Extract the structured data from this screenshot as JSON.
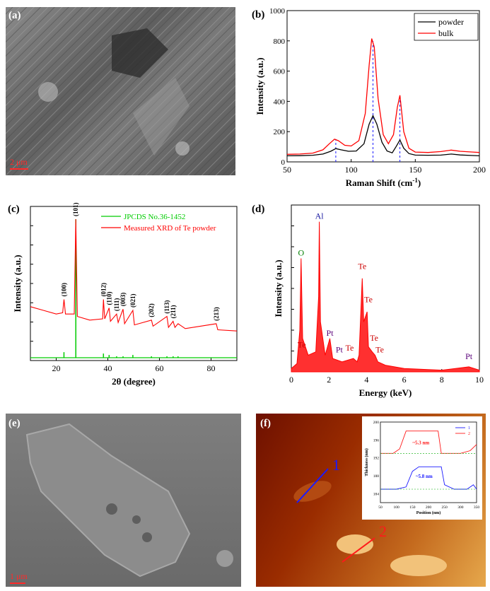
{
  "panels": {
    "a": {
      "label": "(a)",
      "scale_bar": "2 μm",
      "colors": {
        "bg": "#6d6d6d",
        "scale": "#ff2a2a",
        "label": "#ffffff"
      }
    },
    "e": {
      "label": "(e)",
      "scale_bar": "1 μm",
      "colors": {
        "bg": "#777777",
        "scale": "#ff2a2a",
        "label": "#ffffff"
      }
    },
    "f": {
      "label": "(f)",
      "line_labels": [
        "1",
        "2"
      ],
      "inset": {
        "xlabel": "Position (nm)",
        "ylabel": "Thickness (nm)",
        "xticks": [
          "50",
          "100",
          "150",
          "200",
          "250",
          "300",
          "350"
        ],
        "yticks": [
          "184",
          "188",
          "192",
          "196",
          "200"
        ],
        "legend": [
          "1",
          "2"
        ],
        "annotations": [
          "~5.3 nm",
          "~5.8 nm"
        ]
      },
      "colors": {
        "bg_dark": "#8a1c00",
        "bg_light": "#e8a34a",
        "line1": "#1a1aff",
        "line2": "#ff1a1a"
      }
    }
  },
  "chart_data": [
    {
      "id": "b",
      "label": "(b)",
      "type": "line",
      "xlabel": "Raman Shift (cm",
      "xlabel_sup": "-1",
      "xlabel_close": ")",
      "ylabel": "Intensity (a.u.)",
      "xlim": [
        50,
        200
      ],
      "ylim": [
        0,
        1000
      ],
      "xticks": [
        "50",
        "100",
        "150",
        "200"
      ],
      "yticks": [
        "0",
        "200",
        "400",
        "600",
        "800",
        "1000"
      ],
      "legend_position": "top-right",
      "peak_lines": [
        88,
        117,
        138
      ],
      "series": [
        {
          "name": "powder",
          "color": "#000000",
          "points": [
            [
              50,
              40
            ],
            [
              60,
              41
            ],
            [
              70,
              44
            ],
            [
              78,
              52
            ],
            [
              84,
              70
            ],
            [
              88,
              88
            ],
            [
              92,
              80
            ],
            [
              98,
              70
            ],
            [
              104,
              72
            ],
            [
              110,
              120
            ],
            [
              114,
              250
            ],
            [
              117,
              305
            ],
            [
              120,
              250
            ],
            [
              124,
              130
            ],
            [
              128,
              72
            ],
            [
              132,
              60
            ],
            [
              135,
              100
            ],
            [
              138,
              145
            ],
            [
              141,
              90
            ],
            [
              145,
              55
            ],
            [
              150,
              45
            ],
            [
              160,
              44
            ],
            [
              170,
              45
            ],
            [
              178,
              52
            ],
            [
              185,
              46
            ],
            [
              195,
              42
            ],
            [
              200,
              40
            ]
          ]
        },
        {
          "name": "bulk",
          "color": "#ff0000",
          "points": [
            [
              50,
              50
            ],
            [
              60,
              52
            ],
            [
              70,
              58
            ],
            [
              78,
              80
            ],
            [
              83,
              120
            ],
            [
              87,
              150
            ],
            [
              90,
              140
            ],
            [
              95,
              110
            ],
            [
              100,
              105
            ],
            [
              106,
              140
            ],
            [
              111,
              320
            ],
            [
              114,
              640
            ],
            [
              116,
              815
            ],
            [
              118,
              760
            ],
            [
              121,
              420
            ],
            [
              125,
              180
            ],
            [
              129,
              120
            ],
            [
              133,
              180
            ],
            [
              136,
              360
            ],
            [
              138,
              440
            ],
            [
              141,
              200
            ],
            [
              145,
              90
            ],
            [
              150,
              65
            ],
            [
              160,
              62
            ],
            [
              170,
              68
            ],
            [
              178,
              78
            ],
            [
              185,
              70
            ],
            [
              195,
              65
            ],
            [
              200,
              62
            ]
          ]
        }
      ]
    },
    {
      "id": "c",
      "label": "(c)",
      "type": "line",
      "xlabel": "2θ (degree)",
      "ylabel": "Intensity (a.u.)",
      "xlim": [
        10,
        90
      ],
      "xticks": [
        "20",
        "40",
        "60",
        "80"
      ],
      "legend_position": "top-right",
      "series": [
        {
          "name": "JPCDS No.36-1452",
          "color": "#00cc00",
          "sticks": [
            [
              23.0,
              0.04
            ],
            [
              27.6,
              1.0
            ],
            [
              38.3,
              0.03
            ],
            [
              40.5,
              0.02
            ],
            [
              43.4,
              0.01
            ],
            [
              45.9,
              0.01
            ],
            [
              49.7,
              0.02
            ],
            [
              56.9,
              0.01
            ],
            [
              62.9,
              0.01
            ],
            [
              65.3,
              0.01
            ],
            [
              67.2,
              0.01
            ]
          ]
        },
        {
          "name": "Measured XRD of Te powder",
          "color": "#ff0000",
          "points": [
            [
              10,
              0.28
            ],
            [
              15,
              0.25
            ],
            [
              20,
              0.22
            ],
            [
              22.5,
              0.23
            ],
            [
              23.0,
              0.34
            ],
            [
              23.6,
              0.22
            ],
            [
              27.0,
              0.22
            ],
            [
              27.6,
              1.0
            ],
            [
              28.2,
              0.2
            ],
            [
              33,
              0.17
            ],
            [
              38,
              0.18
            ],
            [
              38.3,
              0.34
            ],
            [
              38.8,
              0.18
            ],
            [
              40.5,
              0.27
            ],
            [
              41,
              0.16
            ],
            [
              43.4,
              0.22
            ],
            [
              44,
              0.15
            ],
            [
              45.9,
              0.26
            ],
            [
              46.5,
              0.14
            ],
            [
              49.7,
              0.25
            ],
            [
              50.3,
              0.13
            ],
            [
              56.9,
              0.17
            ],
            [
              57.5,
              0.12
            ],
            [
              62.9,
              0.2
            ],
            [
              63.5,
              0.11
            ],
            [
              65.3,
              0.16
            ],
            [
              66,
              0.11
            ],
            [
              67.2,
              0.14
            ],
            [
              70,
              0.1
            ],
            [
              82.0,
              0.14
            ],
            [
              82.6,
              0.09
            ],
            [
              90,
              0.08
            ]
          ]
        }
      ],
      "peak_labels": [
        {
          "x": 23.0,
          "y": 0.34,
          "text": "(100)"
        },
        {
          "x": 27.6,
          "y": 1.0,
          "text": "(101)"
        },
        {
          "x": 38.3,
          "y": 0.34,
          "text": "(012)"
        },
        {
          "x": 40.5,
          "y": 0.27,
          "text": "(110)"
        },
        {
          "x": 43.4,
          "y": 0.22,
          "text": "(111)"
        },
        {
          "x": 45.9,
          "y": 0.26,
          "text": "(003)"
        },
        {
          "x": 49.7,
          "y": 0.25,
          "text": "(021)"
        },
        {
          "x": 56.9,
          "y": 0.17,
          "text": "(202)"
        },
        {
          "x": 62.9,
          "y": 0.2,
          "text": "(113)"
        },
        {
          "x": 65.3,
          "y": 0.16,
          "text": "(211)"
        },
        {
          "x": 82.0,
          "y": 0.14,
          "text": "(213)"
        }
      ]
    },
    {
      "id": "d",
      "label": "(d)",
      "type": "line",
      "xlabel": "Energy (keV)",
      "ylabel": "Intensity (a.u.)",
      "xlim": [
        0,
        10
      ],
      "xticks": [
        "0",
        "2",
        "4",
        "6",
        "8",
        "10"
      ],
      "series": [
        {
          "name": "",
          "color": "#ff0000",
          "points": [
            [
              0,
              0.02
            ],
            [
              0.3,
              0.05
            ],
            [
              0.45,
              0.25
            ],
            [
              0.52,
              0.68
            ],
            [
              0.6,
              0.2
            ],
            [
              0.9,
              0.1
            ],
            [
              1.3,
              0.12
            ],
            [
              1.45,
              0.45
            ],
            [
              1.49,
              0.9
            ],
            [
              1.55,
              0.3
            ],
            [
              1.8,
              0.1
            ],
            [
              2.05,
              0.2
            ],
            [
              2.2,
              0.08
            ],
            [
              2.7,
              0.06
            ],
            [
              3.3,
              0.08
            ],
            [
              3.5,
              0.06
            ],
            [
              3.6,
              0.1
            ],
            [
              3.77,
              0.56
            ],
            [
              3.85,
              0.3
            ],
            [
              4.03,
              0.36
            ],
            [
              4.1,
              0.15
            ],
            [
              4.3,
              0.12
            ],
            [
              4.45,
              0.1
            ],
            [
              4.6,
              0.06
            ],
            [
              5,
              0.04
            ],
            [
              6,
              0.02
            ],
            [
              8,
              0.01
            ],
            [
              9.44,
              0.03
            ],
            [
              10,
              0.01
            ]
          ]
        }
      ],
      "element_labels": [
        {
          "x": 0.52,
          "y": 0.68,
          "text": "O",
          "color": "#008000"
        },
        {
          "x": 1.49,
          "y": 0.9,
          "text": "Al",
          "color": "#1a1aa0"
        },
        {
          "x": 0.55,
          "y": 0.13,
          "text": "Te",
          "color": "#cc0000"
        },
        {
          "x": 2.05,
          "y": 0.2,
          "text": "Pt",
          "color": "#5a007a"
        },
        {
          "x": 2.55,
          "y": 0.1,
          "text": "Pt",
          "color": "#5a007a"
        },
        {
          "x": 3.1,
          "y": 0.11,
          "text": "Te",
          "color": "#cc0000"
        },
        {
          "x": 3.77,
          "y": 0.6,
          "text": "Te",
          "color": "#cc0000"
        },
        {
          "x": 4.1,
          "y": 0.4,
          "text": "Te",
          "color": "#cc0000"
        },
        {
          "x": 4.4,
          "y": 0.17,
          "text": "Te",
          "color": "#cc0000"
        },
        {
          "x": 4.7,
          "y": 0.1,
          "text": "Te",
          "color": "#cc0000"
        },
        {
          "x": 9.44,
          "y": 0.06,
          "text": "Pt",
          "color": "#5a007a"
        }
      ]
    }
  ]
}
